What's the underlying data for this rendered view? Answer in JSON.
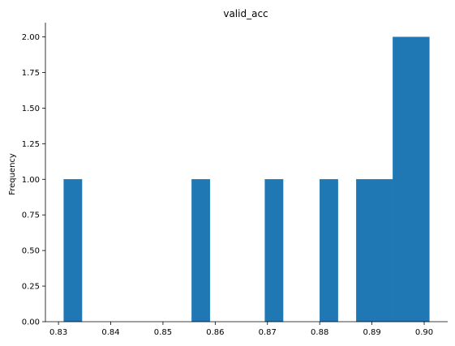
{
  "chart_data": {
    "type": "bar",
    "title": "valid_acc",
    "xlabel": "",
    "ylabel": "Frequency",
    "xlim": [
      0.8275,
      0.9045
    ],
    "ylim": [
      0,
      2.1
    ],
    "bar_color": "#1f77b4",
    "bins": [
      {
        "x0": 0.831,
        "x1": 0.8345,
        "count": 1
      },
      {
        "x0": 0.8555,
        "x1": 0.859,
        "count": 1
      },
      {
        "x0": 0.8695,
        "x1": 0.873,
        "count": 1
      },
      {
        "x0": 0.88,
        "x1": 0.8835,
        "count": 1
      },
      {
        "x0": 0.887,
        "x1": 0.8905,
        "count": 1
      },
      {
        "x0": 0.8905,
        "x1": 0.894,
        "count": 1
      },
      {
        "x0": 0.894,
        "x1": 0.8975,
        "count": 2
      },
      {
        "x0": 0.8975,
        "x1": 0.901,
        "count": 2
      }
    ],
    "xticks": [
      {
        "value": 0.83,
        "label": "0.83"
      },
      {
        "value": 0.84,
        "label": "0.84"
      },
      {
        "value": 0.85,
        "label": "0.85"
      },
      {
        "value": 0.86,
        "label": "0.86"
      },
      {
        "value": 0.87,
        "label": "0.87"
      },
      {
        "value": 0.88,
        "label": "0.88"
      },
      {
        "value": 0.89,
        "label": "0.89"
      },
      {
        "value": 0.9,
        "label": "0.90"
      }
    ],
    "yticks": [
      {
        "value": 0.0,
        "label": "0.00"
      },
      {
        "value": 0.25,
        "label": "0.25"
      },
      {
        "value": 0.5,
        "label": "0.50"
      },
      {
        "value": 0.75,
        "label": "0.75"
      },
      {
        "value": 1.0,
        "label": "1.00"
      },
      {
        "value": 1.25,
        "label": "1.25"
      },
      {
        "value": 1.5,
        "label": "1.50"
      },
      {
        "value": 1.75,
        "label": "1.75"
      },
      {
        "value": 2.0,
        "label": "2.00"
      }
    ],
    "grid": false,
    "spines": [
      "left",
      "bottom"
    ]
  }
}
